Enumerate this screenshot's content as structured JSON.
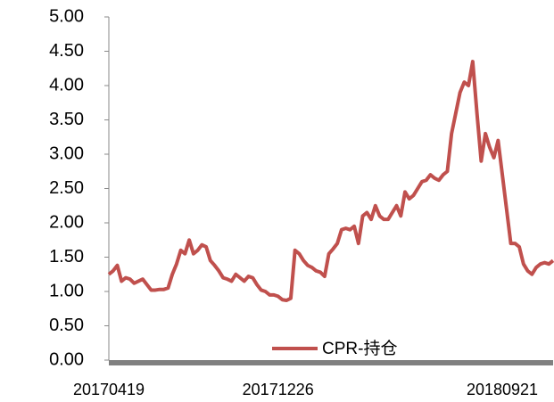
{
  "chart_data": {
    "type": "line",
    "categories": [
      "20170419",
      null,
      null,
      null,
      null,
      null,
      null,
      null,
      null,
      null,
      null,
      null,
      null,
      null,
      null,
      null,
      null,
      null,
      null,
      null,
      null,
      null,
      null,
      null,
      null,
      null,
      null,
      null,
      null,
      null,
      null,
      null,
      null,
      null,
      null,
      null,
      null,
      null,
      null,
      null,
      "20171226",
      null,
      null,
      null,
      null,
      null,
      null,
      null,
      null,
      null,
      null,
      null,
      null,
      null,
      null,
      null,
      null,
      null,
      null,
      null,
      null,
      null,
      null,
      null,
      null,
      null,
      null,
      null,
      null,
      null,
      null,
      null,
      null,
      null,
      null,
      null,
      null,
      null,
      null,
      null,
      null,
      null,
      null,
      null,
      null,
      null,
      null,
      null,
      null,
      null,
      null,
      null,
      null,
      null,
      "20180921",
      null,
      null,
      null,
      null,
      null,
      null,
      null,
      null,
      null,
      null,
      null
    ],
    "series": [
      {
        "name": "CPR-持仓",
        "color": "#c0504d",
        "values": [
          1.25,
          1.3,
          1.38,
          1.15,
          1.2,
          1.18,
          1.12,
          1.15,
          1.18,
          1.1,
          1.02,
          1.02,
          1.03,
          1.03,
          1.05,
          1.25,
          1.4,
          1.6,
          1.55,
          1.75,
          1.55,
          1.6,
          1.68,
          1.65,
          1.45,
          1.38,
          1.3,
          1.2,
          1.18,
          1.15,
          1.25,
          1.2,
          1.15,
          1.22,
          1.2,
          1.1,
          1.02,
          1.0,
          0.95,
          0.95,
          0.93,
          0.88,
          0.87,
          0.9,
          1.6,
          1.55,
          1.45,
          1.38,
          1.35,
          1.3,
          1.28,
          1.22,
          1.55,
          1.62,
          1.7,
          1.9,
          1.92,
          1.9,
          1.95,
          1.7,
          2.1,
          2.15,
          2.05,
          2.25,
          2.1,
          2.05,
          2.05,
          2.15,
          2.25,
          2.1,
          2.45,
          2.35,
          2.4,
          2.5,
          2.6,
          2.62,
          2.7,
          2.65,
          2.62,
          2.7,
          2.75,
          3.3,
          3.6,
          3.9,
          4.05,
          4.0,
          4.35,
          3.6,
          2.9,
          3.3,
          3.1,
          2.95,
          3.2,
          2.7,
          2.2,
          1.7,
          1.7,
          1.65,
          1.4,
          1.3,
          1.25,
          1.35,
          1.4,
          1.42,
          1.4,
          1.45
        ]
      }
    ],
    "ylim": [
      0,
      5
    ],
    "yticks": [
      {
        "value": 0,
        "label": "0.00"
      },
      {
        "value": 0.5,
        "label": "0.50"
      },
      {
        "value": 1,
        "label": "1.00"
      },
      {
        "value": 1.5,
        "label": "1.50"
      },
      {
        "value": 2,
        "label": "2.00"
      },
      {
        "value": 2.5,
        "label": "2.50"
      },
      {
        "value": 3,
        "label": "3.00"
      },
      {
        "value": 3.5,
        "label": "3.50"
      },
      {
        "value": 4,
        "label": "4.00"
      },
      {
        "value": 4.5,
        "label": "4.50"
      },
      {
        "value": 5,
        "label": "5.00"
      }
    ],
    "grid": false
  }
}
